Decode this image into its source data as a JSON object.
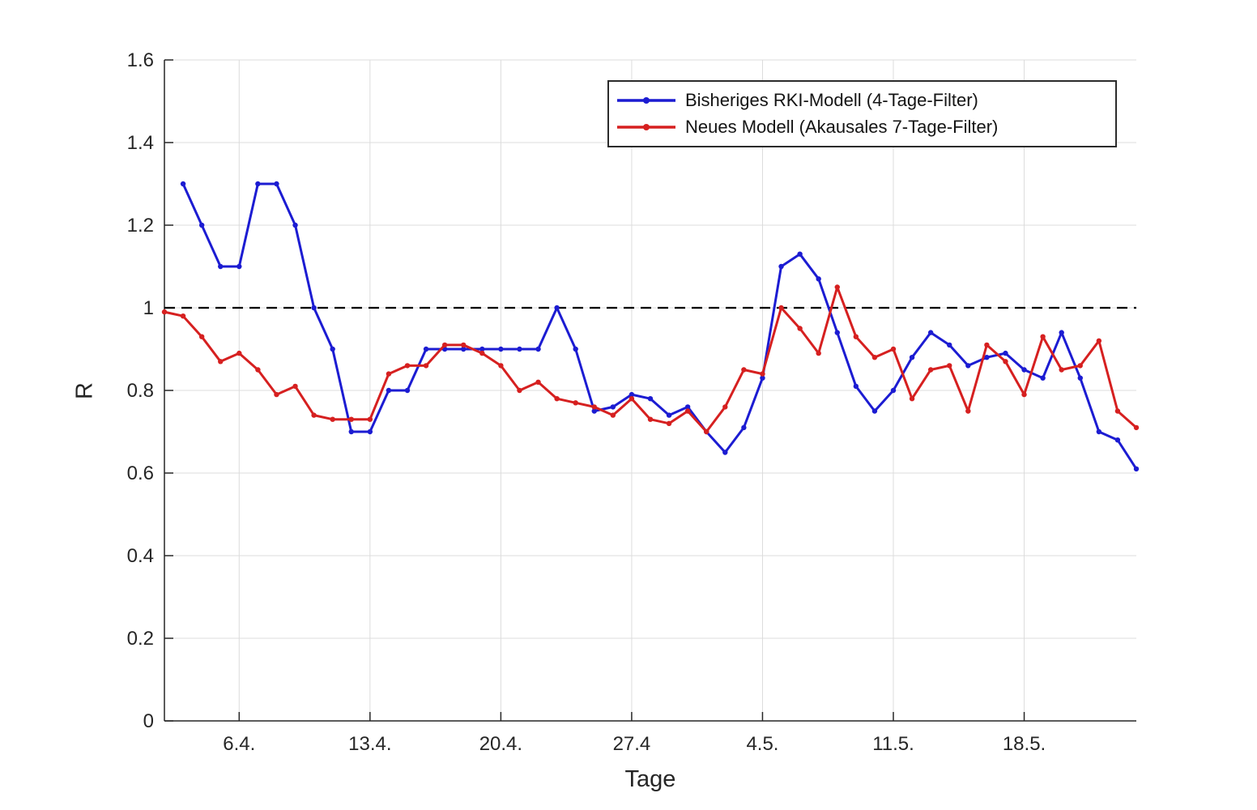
{
  "chart_data": {
    "type": "line",
    "title": "",
    "xlabel": "Tage",
    "ylabel": "R",
    "xlim_days": [
      0,
      52
    ],
    "ylim": [
      0,
      1.6
    ],
    "grid": true,
    "yticks": {
      "values": [
        0,
        0.2,
        0.4,
        0.6,
        0.8,
        1,
        1.2,
        1.4,
        1.6
      ],
      "labels": [
        "0",
        "0.2",
        "0.4",
        "0.6",
        "0.8",
        "1",
        "1.2",
        "1.4",
        "1.6"
      ]
    },
    "xticks": {
      "day_positions": [
        4,
        11,
        18,
        25,
        32,
        39,
        46
      ],
      "labels": [
        "6.4.",
        "13.4.",
        "20.4.",
        "27.4",
        "4.5.",
        "11.5.",
        "18.5."
      ]
    },
    "reference_line": {
      "y": 1.0,
      "style": "dashed",
      "color": "#000000"
    },
    "legend": {
      "position": "top-right"
    },
    "style": {
      "grid_color": "#dcdcdc",
      "axis_color": "#262626",
      "background": "#ffffff"
    },
    "series": [
      {
        "name": "Bisheriges RKI-Modell (4-Tage-Filter)",
        "color": "#1c1cd2",
        "marker": "circle",
        "start_day": 1,
        "values": [
          1.3,
          1.2,
          1.1,
          1.1,
          1.3,
          1.3,
          1.2,
          1.0,
          0.9,
          0.7,
          0.7,
          0.8,
          0.8,
          0.9,
          0.9,
          0.9,
          0.9,
          0.9,
          0.9,
          0.9,
          1.0,
          0.9,
          0.75,
          0.76,
          0.79,
          0.78,
          0.74,
          0.76,
          0.7,
          0.65,
          0.71,
          0.83,
          1.1,
          1.13,
          1.07,
          0.94,
          0.81,
          0.75,
          0.8,
          0.88,
          0.94,
          0.91,
          0.86,
          0.88,
          0.89,
          0.85,
          0.83,
          0.94,
          0.83,
          0.7,
          0.68,
          0.61
        ]
      },
      {
        "name": "Neues Modell (Akausales 7-Tage-Filter)",
        "color": "#d62020",
        "marker": "circle",
        "start_day": 0,
        "values": [
          0.99,
          0.98,
          0.93,
          0.87,
          0.89,
          0.85,
          0.79,
          0.81,
          0.74,
          0.73,
          0.73,
          0.73,
          0.84,
          0.86,
          0.86,
          0.91,
          0.91,
          0.89,
          0.86,
          0.8,
          0.82,
          0.78,
          0.77,
          0.76,
          0.74,
          0.78,
          0.73,
          0.72,
          0.75,
          0.7,
          0.76,
          0.85,
          0.84,
          1.0,
          0.95,
          0.89,
          1.05,
          0.93,
          0.88,
          0.9,
          0.78,
          0.85,
          0.86,
          0.75,
          0.91,
          0.87,
          0.79,
          0.93,
          0.85,
          0.86,
          0.92,
          0.75,
          0.71
        ]
      }
    ]
  }
}
